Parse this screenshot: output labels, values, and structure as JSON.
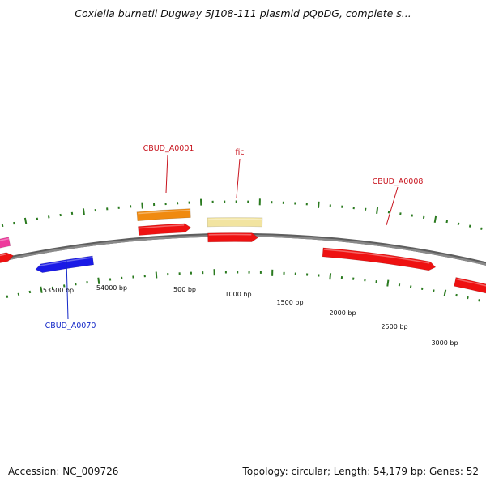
{
  "title": "Coxiella burnetii Dugway 5J108-111 plasmid pQpDG, complete s...",
  "footer": {
    "accession": "Accession: NC_009726",
    "summary": "Topology: circular; Length: 54,179 bp; Genes: 52"
  },
  "genome_length": 54179,
  "colors": {
    "backbone": "#8a8a8a",
    "tick": "#2a7a1f",
    "forward_label": "#c8141e",
    "reverse_label": "#1428c8",
    "red_gene": "#ee1111",
    "blue_gene": "#1a1ae6",
    "orange_gene": "#f08a10",
    "yellow_gene": "#f2e4a0",
    "pink_gene": "#ee3a9c"
  },
  "ruler_labels": [
    {
      "position": 53500,
      "text": "53500 bp"
    },
    {
      "position": 54000,
      "text": "54000 bp"
    },
    {
      "position": 500,
      "text": "500 bp"
    },
    {
      "position": 1000,
      "text": "1000 bp"
    },
    {
      "position": 1500,
      "text": "1500 bp"
    },
    {
      "position": 2000,
      "text": "2000 bp"
    },
    {
      "position": 2500,
      "text": "2500 bp"
    },
    {
      "position": 3000,
      "text": "3000 bp"
    }
  ],
  "gene_labels": [
    {
      "text": "CBUD_A0001",
      "strand": "forward"
    },
    {
      "text": "fic",
      "strand": "forward"
    },
    {
      "text": "CBUD_A0008",
      "strand": "forward"
    },
    {
      "text": "CBUD_A0070",
      "strand": "reverse"
    }
  ],
  "features": [
    {
      "name": "pink-gene",
      "color": "pink_gene",
      "track": "outer"
    },
    {
      "name": "red-gene-left",
      "color": "red_gene",
      "track": "inner"
    },
    {
      "name": "blue-gene",
      "color": "blue_gene",
      "track": "reverse"
    },
    {
      "name": "orange-gene",
      "color": "orange_gene",
      "track": "outer"
    },
    {
      "name": "red-gene-a0001",
      "color": "red_gene",
      "track": "inner"
    },
    {
      "name": "yellow-gene",
      "color": "yellow_gene",
      "track": "outer"
    },
    {
      "name": "red-gene-fic",
      "color": "red_gene",
      "track": "inner"
    },
    {
      "name": "red-gene-a0008",
      "color": "red_gene",
      "track": "inner"
    },
    {
      "name": "red-gene-right",
      "color": "red_gene",
      "track": "inner"
    }
  ]
}
